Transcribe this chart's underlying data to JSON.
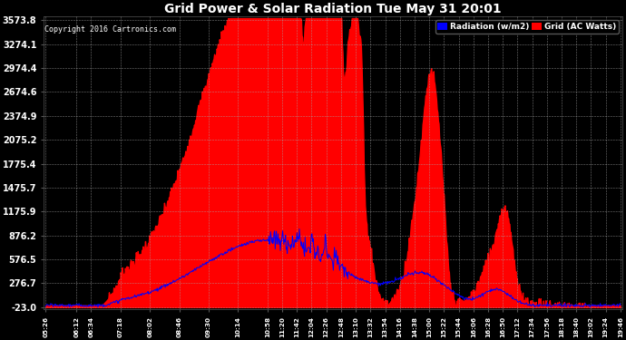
{
  "title": "Grid Power & Solar Radiation Tue May 31 20:01",
  "copyright": "Copyright 2016 Cartronics.com",
  "legend_radiation": "Radiation (w/m2)",
  "legend_grid": "Grid (AC Watts)",
  "ymin": -23.0,
  "ymax": 3573.8,
  "yticks": [
    3573.8,
    3274.1,
    2974.4,
    2674.6,
    2374.9,
    2075.2,
    1775.4,
    1475.7,
    1175.9,
    876.2,
    576.5,
    276.7,
    -23.0
  ],
  "bg_color": "#000000",
  "plot_bg_color": "#000000",
  "grid_color": "#aaaaaa",
  "title_color": "#ffffff",
  "ytick_color": "#ffffff",
  "xtick_color": "#ffffff",
  "radiation_color": "#0000ff",
  "grid_ac_color": "#ff0000",
  "xtick_labels": [
    "05:26",
    "06:12",
    "06:34",
    "07:18",
    "08:02",
    "08:46",
    "09:30",
    "10:14",
    "10:58",
    "11:20",
    "11:42",
    "12:04",
    "12:26",
    "12:48",
    "13:10",
    "13:32",
    "13:54",
    "14:16",
    "14:38",
    "15:00",
    "15:22",
    "15:44",
    "16:06",
    "16:28",
    "16:50",
    "17:12",
    "17:34",
    "17:56",
    "18:18",
    "18:40",
    "19:02",
    "19:24",
    "19:46"
  ]
}
